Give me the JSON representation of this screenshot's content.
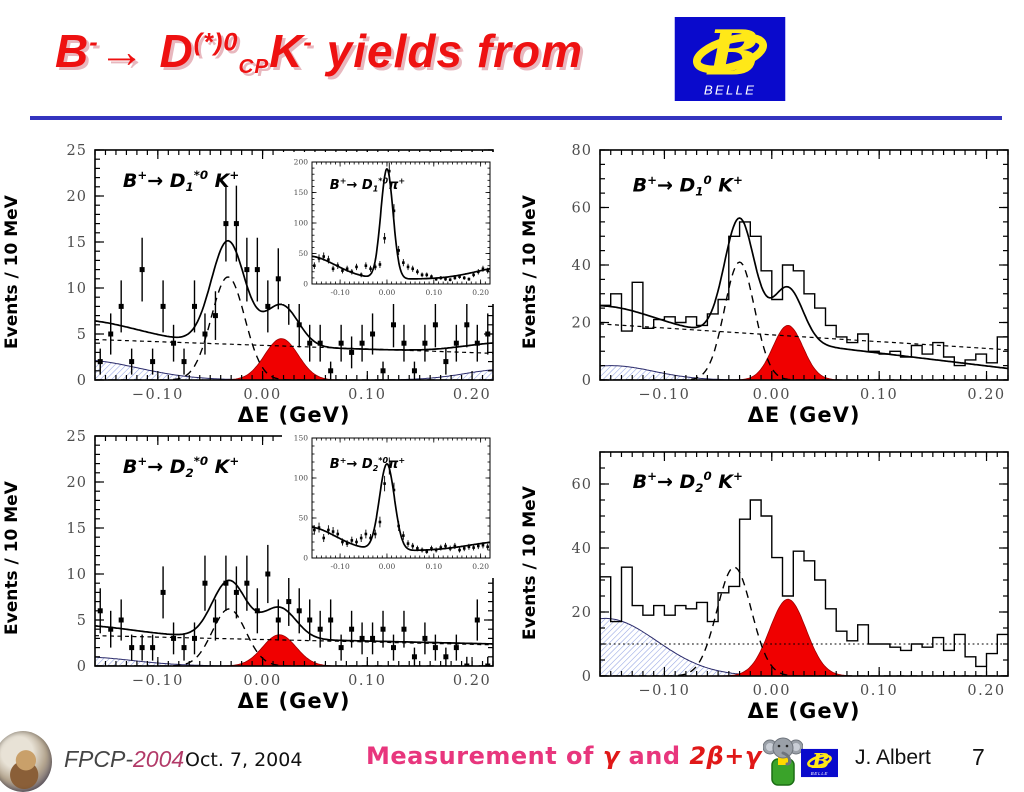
{
  "colors": {
    "accent_red": "#ee1111",
    "signal_red": "#f00000",
    "divider_blue": "#3434bf",
    "belle_blue": "#0a0acc",
    "belle_yellow": "#ffe818",
    "hatch_blue": "#93a3e2",
    "pink": "#e8367d",
    "gamma_red": "#e01818",
    "tick_gray": "#4d4d4d"
  },
  "title": {
    "segments": [
      {
        "t": "B"
      },
      {
        "t": "-",
        "s": "sup"
      },
      {
        "t": "→ D"
      },
      {
        "t": "(*)0",
        "s": "sup"
      },
      {
        "t": "CP",
        "s": "sub"
      },
      {
        "t": "K"
      },
      {
        "t": "-",
        "s": "sup"
      },
      {
        "t": " yields from"
      }
    ]
  },
  "belle_logo": {
    "letter": "B",
    "caption": "BELLE"
  },
  "footer": {
    "conference": "FPCP-",
    "year": "2004",
    "date": "Oct. 7, 2004",
    "center_segments": [
      {
        "t": "Measurement of ",
        "c": "pink"
      },
      {
        "t": "γ ",
        "c": "gamma_red",
        "i": true
      },
      {
        "t": "and ",
        "c": "pink"
      },
      {
        "t": "2β+γ",
        "c": "gamma_red",
        "i": true
      }
    ],
    "author": "J. Albert",
    "page": "7"
  },
  "chart_data": [
    {
      "id": "b-to-d1star0-k",
      "type": "scatter",
      "title_segments": [
        {
          "t": "B"
        },
        {
          "t": "+",
          "s": "sup"
        },
        {
          "t": "→ D"
        },
        {
          "t": "1",
          "s": "sub"
        },
        {
          "t": "*0",
          "s": "sup"
        },
        {
          "t": " K"
        },
        {
          "t": "+",
          "s": "sup"
        }
      ],
      "xlabel": "ΔE (GeV)",
      "ylabel": "Events / 10 MeV",
      "xlim": [
        -0.16,
        0.22
      ],
      "ylim": [
        0,
        25
      ],
      "xticks": [
        [
          -0.1,
          "−0.10"
        ],
        [
          0,
          "0.00"
        ],
        [
          0.1,
          "0.10"
        ],
        [
          0.2,
          "0.20"
        ]
      ],
      "yticks": [
        [
          0,
          "0"
        ],
        [
          5,
          "5"
        ],
        [
          10,
          "10"
        ],
        [
          15,
          "15"
        ],
        [
          20,
          "20"
        ],
        [
          25,
          "25"
        ]
      ],
      "x_minor": 0.01,
      "y_minor": 1,
      "label_pos": [
        0.07,
        0.16
      ],
      "x0": -0.155,
      "dx": 0.01,
      "y": [
        2,
        5,
        8,
        2,
        12,
        2,
        8,
        4,
        2,
        8,
        5,
        7,
        17,
        17,
        12,
        12,
        8,
        11,
        9,
        6,
        4,
        4,
        1,
        4,
        3,
        4,
        5,
        1,
        6,
        4,
        1,
        4,
        6,
        2,
        4,
        6,
        4,
        5
      ],
      "fills": [
        {
          "style": "hatch",
          "parts": [
            {
              "k": "g",
              "c": -0.175,
              "s": 0.055,
              "a": 2.2
            }
          ]
        },
        {
          "style": "hatch",
          "parts": [
            {
              "k": "g",
              "c": 0.235,
              "s": 0.04,
              "a": 1.2
            }
          ]
        },
        {
          "style": "red",
          "parts": [
            {
              "k": "g",
              "c": 0.018,
              "s": 0.016,
              "a": 4.5
            }
          ]
        }
      ],
      "curves": [
        {
          "style": "dot",
          "parts": [
            {
              "k": "lin",
              "y0": 4.4,
              "y1": 2.9
            }
          ]
        },
        {
          "style": "dash",
          "parts": [
            {
              "k": "g",
              "c": -0.033,
              "s": 0.016,
              "a": 11.2
            }
          ]
        },
        {
          "style": "solid",
          "parts": [
            {
              "k": "lin",
              "y0": 4.3,
              "y1": 2.9
            },
            {
              "k": "g",
              "c": -0.175,
              "s": 0.055,
              "a": 2.2
            },
            {
              "k": "g",
              "c": -0.033,
              "s": 0.016,
              "a": 11.2
            },
            {
              "k": "g",
              "c": 0.018,
              "s": 0.016,
              "a": 4.5
            },
            {
              "k": "g",
              "c": 0.235,
              "s": 0.04,
              "a": 1.2
            }
          ]
        }
      ]
    },
    {
      "id": "b-to-d1star0-pi",
      "type": "scatter",
      "inset": true,
      "title_segments": [
        {
          "t": "B"
        },
        {
          "t": "+",
          "s": "sup"
        },
        {
          "t": "→ D"
        },
        {
          "t": "1",
          "s": "sub"
        },
        {
          "t": "*0",
          "s": "sup"
        },
        {
          "t": "π"
        },
        {
          "t": "+",
          "s": "sup"
        }
      ],
      "xlabel": "",
      "ylabel": "",
      "xlim": [
        -0.16,
        0.22
      ],
      "ylim": [
        0,
        200
      ],
      "xticks": [
        [
          -0.1,
          "-0.10"
        ],
        [
          0,
          "0.00"
        ],
        [
          0.1,
          "0.10"
        ],
        [
          0.2,
          "0.20"
        ]
      ],
      "yticks": [
        [
          0,
          "0"
        ],
        [
          50,
          "50"
        ],
        [
          100,
          "100"
        ],
        [
          150,
          "150"
        ],
        [
          200,
          "200"
        ]
      ],
      "x_minor": 0.01,
      "y_minor": 10,
      "label_pos": [
        0.1,
        0.22
      ],
      "x0": -0.155,
      "dx": 0.01,
      "y": [
        30,
        42,
        45,
        40,
        25,
        30,
        22,
        25,
        20,
        28,
        15,
        30,
        25,
        28,
        32,
        75,
        185,
        120,
        55,
        35,
        28,
        25,
        20,
        15,
        15,
        12,
        8,
        10,
        8,
        7,
        10,
        12,
        10,
        8,
        15,
        20,
        25,
        22
      ],
      "fills": [],
      "curves": [
        {
          "style": "solid",
          "parts": [
            {
              "k": "flat",
              "y": 8
            },
            {
              "k": "g",
              "c": 0.0,
              "s": 0.013,
              "a": 180
            },
            {
              "k": "g",
              "c": -0.17,
              "s": 0.06,
              "a": 38
            },
            {
              "k": "g",
              "c": 0.26,
              "s": 0.07,
              "a": 20
            }
          ]
        }
      ]
    },
    {
      "id": "b-to-d10-k",
      "type": "histogram",
      "title_segments": [
        {
          "t": "B"
        },
        {
          "t": "+",
          "s": "sup"
        },
        {
          "t": "→ D"
        },
        {
          "t": "1",
          "s": "sub"
        },
        {
          "t": "0",
          "s": "sup"
        },
        {
          "t": " K"
        },
        {
          "t": "+",
          "s": "sup"
        }
      ],
      "xlabel": "ΔE (GeV)",
      "ylabel": "Events / 10 MeV",
      "xlim": [
        -0.16,
        0.22
      ],
      "ylim": [
        0,
        80
      ],
      "xticks": [
        [
          -0.1,
          "−0.10"
        ],
        [
          0,
          "0.00"
        ],
        [
          0.1,
          "0.10"
        ],
        [
          0.2,
          "0.20"
        ]
      ],
      "yticks": [
        [
          0,
          "0"
        ],
        [
          20,
          "20"
        ],
        [
          40,
          "40"
        ],
        [
          60,
          "60"
        ],
        [
          80,
          "80"
        ]
      ],
      "x_minor": 0.01,
      "y_minor": 5,
      "label_pos": [
        0.08,
        0.18
      ],
      "x0": -0.155,
      "dx": 0.01,
      "y": [
        26,
        30,
        17,
        34,
        18,
        21,
        22,
        20,
        22,
        19,
        23,
        28,
        50,
        55,
        50,
        38,
        28,
        40,
        38,
        30,
        25,
        19,
        15,
        13,
        16,
        10,
        9,
        10,
        8,
        12,
        9,
        13,
        8,
        5,
        7,
        9,
        6,
        15
      ],
      "fills": [
        {
          "style": "hatch",
          "parts": [
            {
              "k": "g",
              "c": -0.15,
              "s": 0.04,
              "a": 5
            }
          ]
        },
        {
          "style": "red",
          "parts": [
            {
              "k": "g",
              "c": 0.015,
              "s": 0.014,
              "a": 19
            }
          ]
        }
      ],
      "curves": [
        {
          "style": "dot",
          "parts": [
            {
              "k": "lin",
              "y0": 19.5,
              "y1": 10.5
            }
          ]
        },
        {
          "style": "dash",
          "parts": [
            {
              "k": "g",
              "c": -0.03,
              "s": 0.014,
              "a": 41
            }
          ]
        },
        {
          "style": "solid",
          "parts": [
            {
              "k": "lin",
              "y0": 21,
              "y1": 4
            },
            {
              "k": "g",
              "c": -0.15,
              "s": 0.04,
              "a": 5
            },
            {
              "k": "g",
              "c": -0.03,
              "s": 0.014,
              "a": 41
            },
            {
              "k": "g",
              "c": 0.015,
              "s": 0.014,
              "a": 19
            }
          ]
        }
      ]
    },
    {
      "id": "b-to-d2star0-k",
      "type": "scatter",
      "title_segments": [
        {
          "t": "B"
        },
        {
          "t": "+",
          "s": "sup"
        },
        {
          "t": "→ D"
        },
        {
          "t": "2",
          "s": "sub"
        },
        {
          "t": "*0",
          "s": "sup"
        },
        {
          "t": " K"
        },
        {
          "t": "+",
          "s": "sup"
        }
      ],
      "xlabel": "ΔE (GeV)",
      "ylabel": "Events / 10 MeV",
      "xlim": [
        -0.16,
        0.22
      ],
      "ylim": [
        0,
        25
      ],
      "xticks": [
        [
          -0.1,
          "−0.10"
        ],
        [
          0,
          "0.00"
        ],
        [
          0.1,
          "0.10"
        ],
        [
          0.2,
          "0.20"
        ]
      ],
      "yticks": [
        [
          0,
          "0"
        ],
        [
          5,
          "5"
        ],
        [
          10,
          "10"
        ],
        [
          15,
          "15"
        ],
        [
          20,
          "20"
        ],
        [
          25,
          "25"
        ]
      ],
      "x_minor": 0.01,
      "y_minor": 1,
      "label_pos": [
        0.07,
        0.16
      ],
      "x0": -0.155,
      "dx": 0.01,
      "y": [
        6,
        4,
        5,
        2,
        2,
        2,
        8,
        3,
        2,
        3,
        9,
        5,
        9,
        8,
        9,
        6,
        10,
        5,
        7,
        6,
        5,
        4,
        5,
        2,
        4,
        3,
        3,
        4,
        2,
        4,
        1,
        3,
        2,
        1,
        2,
        0,
        5,
        0
      ],
      "fills": [
        {
          "style": "hatch",
          "parts": [
            {
              "k": "g",
              "c": -0.175,
              "s": 0.05,
              "a": 1.0
            }
          ]
        },
        {
          "style": "red",
          "parts": [
            {
              "k": "g",
              "c": 0.016,
              "s": 0.016,
              "a": 3.4
            }
          ]
        }
      ],
      "curves": [
        {
          "style": "dot",
          "parts": [
            {
              "k": "lin",
              "y0": 3.3,
              "y1": 2.3
            }
          ]
        },
        {
          "style": "dash",
          "parts": [
            {
              "k": "g",
              "c": -0.032,
              "s": 0.016,
              "a": 6.2
            }
          ]
        },
        {
          "style": "solid",
          "parts": [
            {
              "k": "lin",
              "y0": 3.4,
              "y1": 2.4
            },
            {
              "k": "g",
              "c": -0.175,
              "s": 0.05,
              "a": 1.0
            },
            {
              "k": "g",
              "c": -0.032,
              "s": 0.016,
              "a": 6.2
            },
            {
              "k": "g",
              "c": 0.016,
              "s": 0.016,
              "a": 3.4
            }
          ]
        }
      ]
    },
    {
      "id": "b-to-d2star0-pi",
      "type": "scatter",
      "inset": true,
      "title_segments": [
        {
          "t": "B"
        },
        {
          "t": "+",
          "s": "sup"
        },
        {
          "t": "→ D"
        },
        {
          "t": "2",
          "s": "sub"
        },
        {
          "t": "*0",
          "s": "sup"
        },
        {
          "t": "π"
        },
        {
          "t": "+",
          "s": "sup"
        }
      ],
      "xlabel": "",
      "ylabel": "",
      "xlim": [
        -0.16,
        0.22
      ],
      "ylim": [
        0,
        150
      ],
      "xticks": [
        [
          -0.1,
          "-0.10"
        ],
        [
          0,
          "0.00"
        ],
        [
          0.1,
          "0.10"
        ],
        [
          0.2,
          "0.20"
        ]
      ],
      "yticks": [
        [
          0,
          "0"
        ],
        [
          50,
          "50"
        ],
        [
          100,
          "100"
        ],
        [
          150,
          "150"
        ]
      ],
      "x_minor": 0.01,
      "y_minor": 10,
      "label_pos": [
        0.1,
        0.25
      ],
      "x0": -0.155,
      "dx": 0.01,
      "y": [
        35,
        38,
        25,
        35,
        33,
        30,
        20,
        18,
        22,
        20,
        25,
        30,
        25,
        30,
        45,
        93,
        115,
        85,
        40,
        28,
        18,
        15,
        12,
        10,
        8,
        12,
        10,
        13,
        15,
        12,
        15,
        10,
        12,
        14,
        13,
        15,
        16,
        14
      ],
      "fills": [],
      "curves": [
        {
          "style": "solid",
          "parts": [
            {
              "k": "flat",
              "y": 9
            },
            {
              "k": "g",
              "c": 0.0,
              "s": 0.016,
              "a": 108
            },
            {
              "k": "g",
              "c": -0.17,
              "s": 0.06,
              "a": 30
            },
            {
              "k": "g",
              "c": 0.26,
              "s": 0.08,
              "a": 12
            }
          ]
        }
      ]
    },
    {
      "id": "b-to-d20-k",
      "type": "histogram",
      "title_segments": [
        {
          "t": "B"
        },
        {
          "t": "+",
          "s": "sup"
        },
        {
          "t": "→ D"
        },
        {
          "t": "2",
          "s": "sub"
        },
        {
          "t": "0",
          "s": "sup"
        },
        {
          "t": " K"
        },
        {
          "t": "+",
          "s": "sup"
        }
      ],
      "xlabel": "ΔE (GeV)",
      "ylabel": "Events / 10 MeV",
      "xlim": [
        -0.16,
        0.22
      ],
      "ylim": [
        0,
        70
      ],
      "xticks": [
        [
          -0.1,
          "−0.10"
        ],
        [
          0,
          "0.00"
        ],
        [
          0.1,
          "0.10"
        ],
        [
          0.2,
          "0.20"
        ]
      ],
      "yticks": [
        [
          0,
          "0"
        ],
        [
          20,
          "20"
        ],
        [
          40,
          "40"
        ],
        [
          60,
          "60"
        ]
      ],
      "x_minor": 0.01,
      "y_minor": 5,
      "label_pos": [
        0.08,
        0.16
      ],
      "x0": -0.155,
      "dx": 0.01,
      "y": [
        31,
        17,
        34,
        22,
        19,
        22,
        19,
        22,
        21,
        23,
        17,
        26,
        28,
        49,
        55,
        50,
        37,
        25,
        39,
        36,
        30,
        21,
        14,
        11,
        16,
        10,
        10,
        9,
        8,
        10,
        9,
        12,
        8,
        13,
        6,
        3,
        7,
        13
      ],
      "fills": [
        {
          "style": "hatch",
          "outline": true,
          "parts": [
            {
              "k": "g",
              "c": -0.155,
              "s": 0.048,
              "a": 18
            }
          ]
        },
        {
          "style": "red",
          "parts": [
            {
              "k": "g",
              "c": 0.015,
              "s": 0.017,
              "a": 24
            }
          ]
        }
      ],
      "curves": [
        {
          "style": "dotfine",
          "parts": [
            {
              "k": "flat",
              "y": 10
            }
          ]
        },
        {
          "style": "dash",
          "parts": [
            {
              "k": "g",
              "c": -0.035,
              "s": 0.016,
              "a": 34
            }
          ]
        }
      ]
    }
  ]
}
